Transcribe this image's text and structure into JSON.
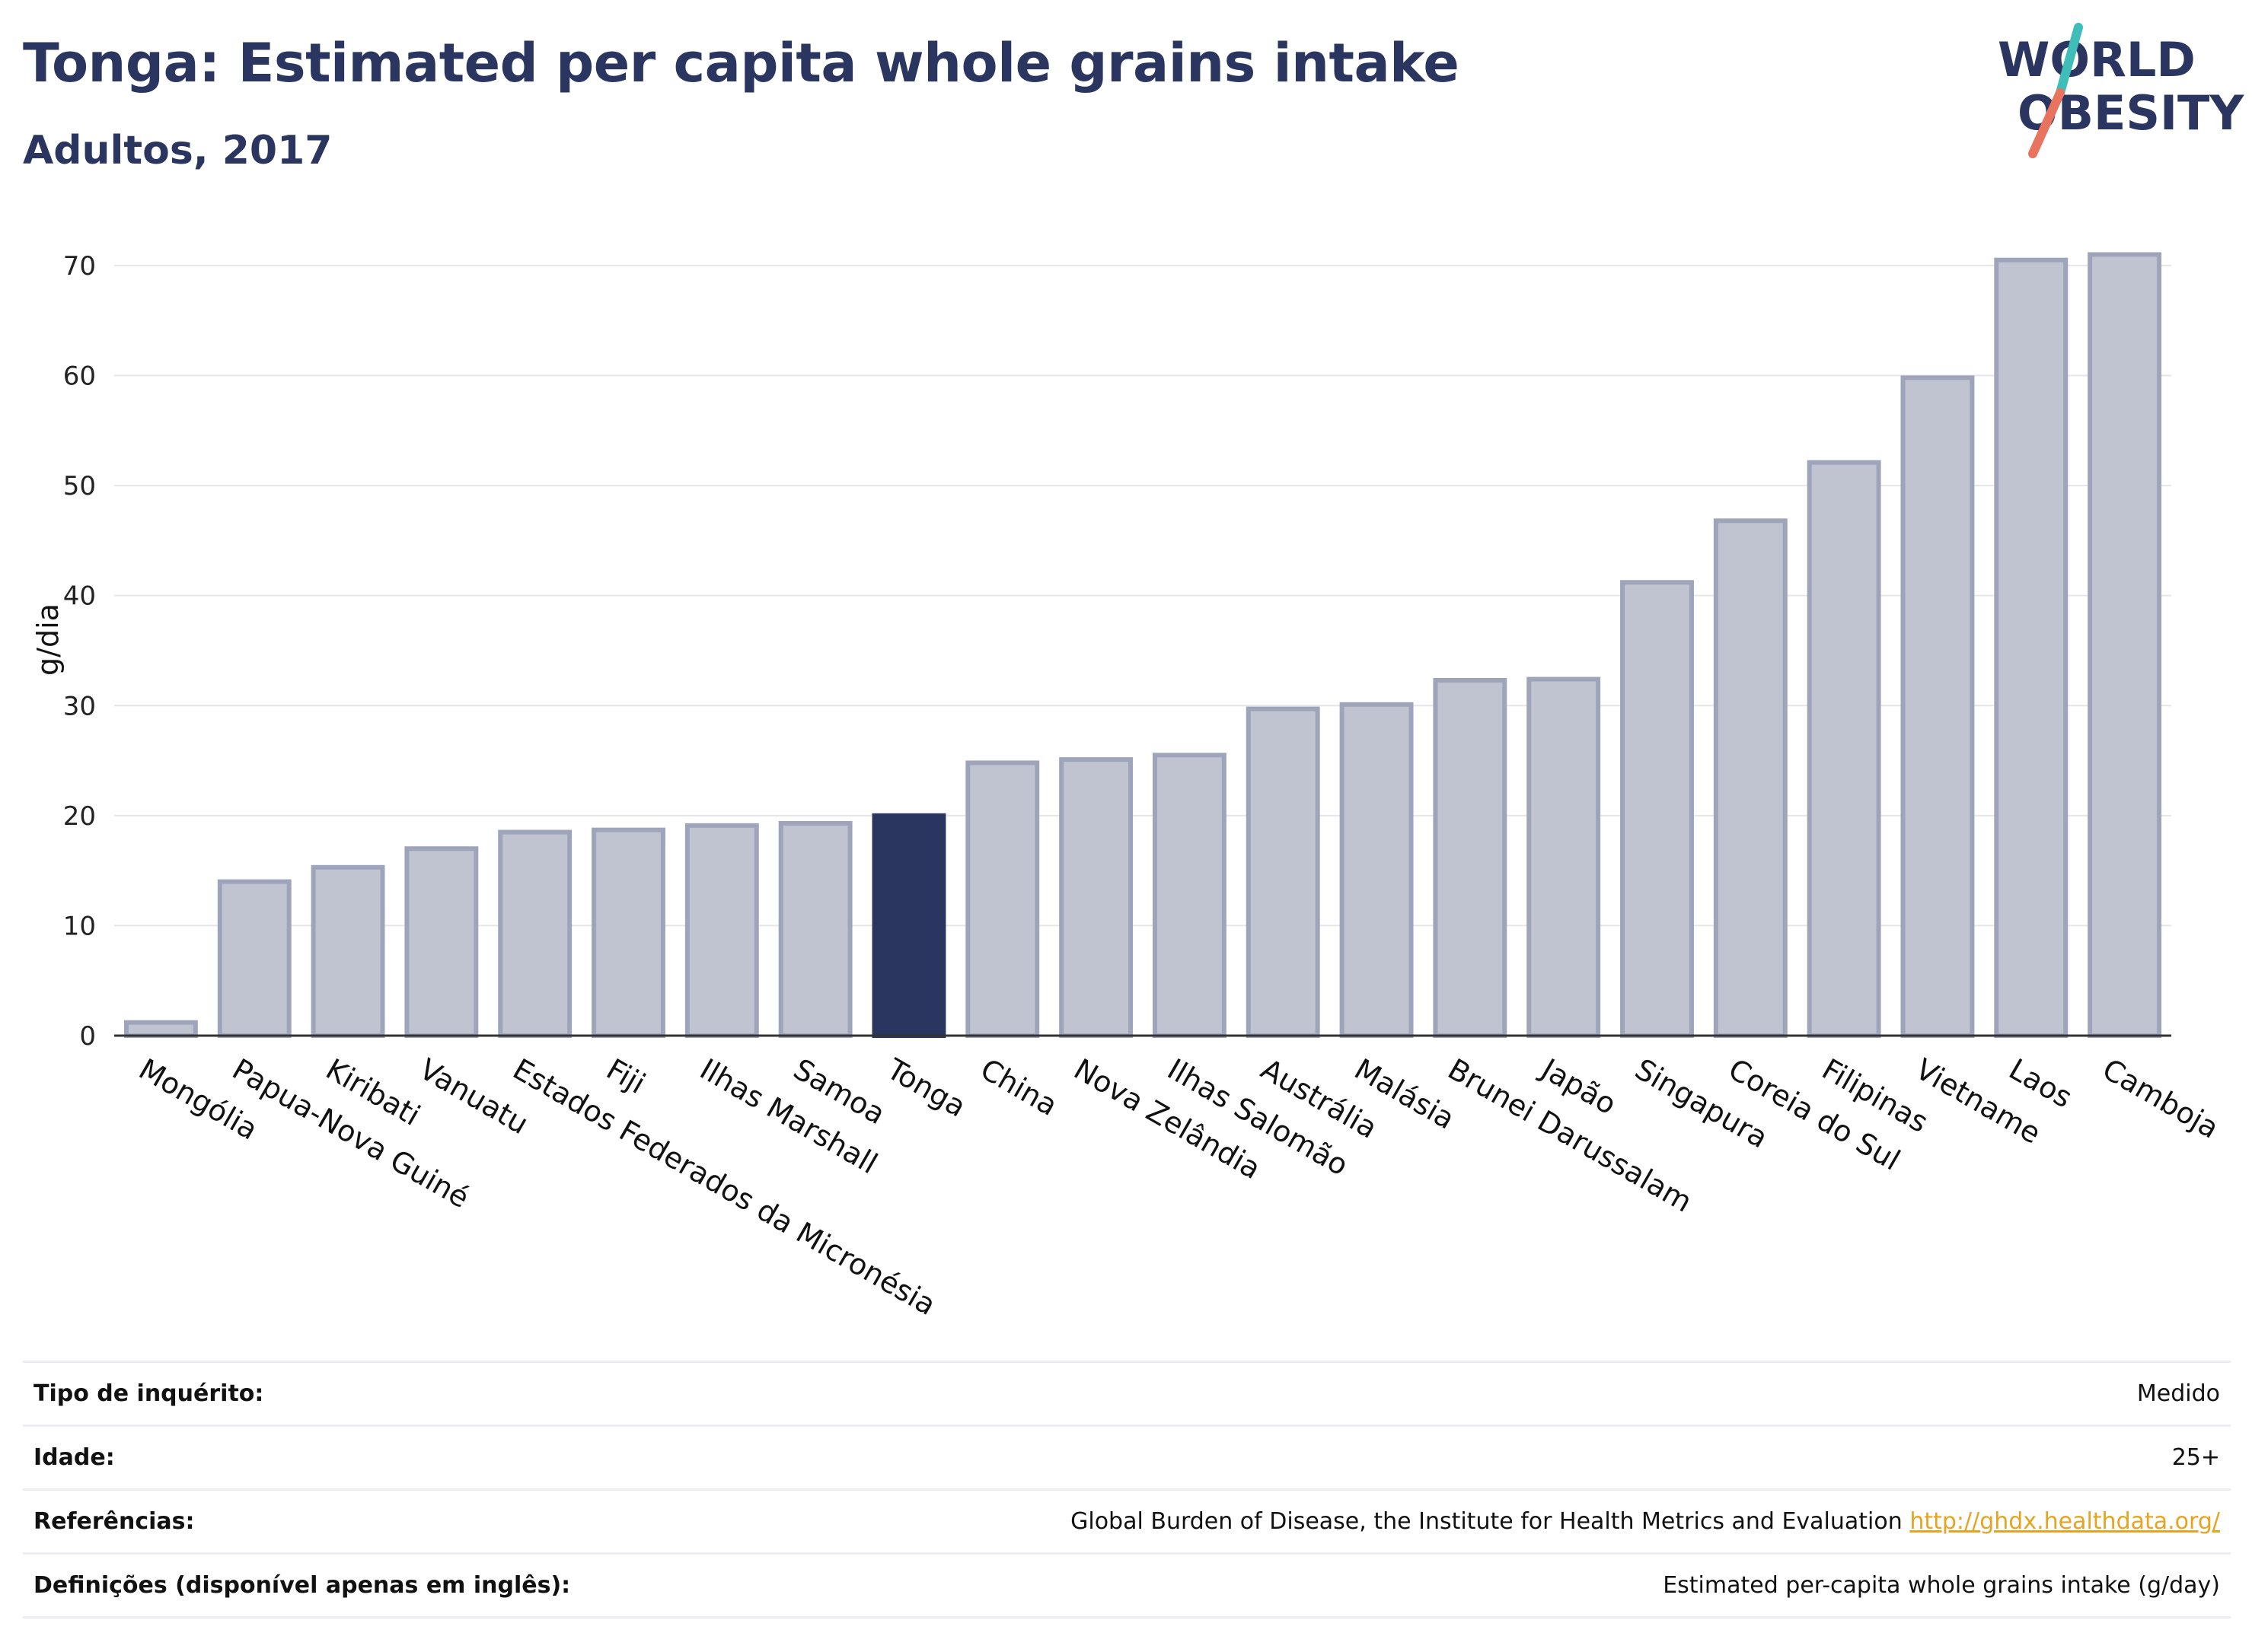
{
  "header": {
    "title": "Tonga: Estimated per capita whole grains intake",
    "subtitle": "Adultos, 2017"
  },
  "logo": {
    "line1": "WORLD",
    "line2": "OBESITY",
    "icon": "world-obesity-logo"
  },
  "colors": {
    "highlight_bar": "#2a3560",
    "bar_fill": "#c0c4d0",
    "bar_stroke": "#9ea5bb",
    "grid": "#e6e6ea",
    "axis": "#333333",
    "logo_teal": "#3fbdb8",
    "logo_coral": "#e8735e",
    "link": "#e5a421"
  },
  "chart_data": {
    "type": "bar",
    "categories": [
      "Mongólia",
      "Papua-Nova Guiné",
      "Kiribati",
      "Vanuatu",
      "Estados Federados da Micronésia",
      "Fiji",
      "Ilhas Marshall",
      "Samoa",
      "Tonga",
      "China",
      "Nova Zelândia",
      "Ilhas Salomão",
      "Austrália",
      "Malásia",
      "Brunei Darussalam",
      "Japão",
      "Singapura",
      "Coreia do Sul",
      "Filipinas",
      "Vietname",
      "Laos",
      "Camboja"
    ],
    "values": [
      1.2,
      14,
      15.3,
      17,
      18.5,
      18.7,
      19.1,
      19.3,
      20,
      24.8,
      25.1,
      25.5,
      29.7,
      30.1,
      32.3,
      32.4,
      41.2,
      46.8,
      52.1,
      59.8,
      70.5,
      71
    ],
    "highlight": "Tonga",
    "xlabel": "",
    "ylabel": "g/dia",
    "ylim": [
      0,
      72
    ],
    "yticks": [
      0,
      10,
      20,
      30,
      40,
      50,
      60,
      70
    ],
    "grid": true,
    "legend": "none"
  },
  "info": [
    {
      "label": "Tipo de inquérito:",
      "value": "Medido"
    },
    {
      "label": "Idade:",
      "value": "25+"
    },
    {
      "label": "Referências:",
      "value": "Global Burden of Disease, the Institute for Health Metrics and Evaluation",
      "link": "http://ghdx.healthdata.org/"
    },
    {
      "label": "Definições (disponível apenas em inglês):",
      "value": "Estimated per-capita whole grains intake (g/day)"
    }
  ]
}
